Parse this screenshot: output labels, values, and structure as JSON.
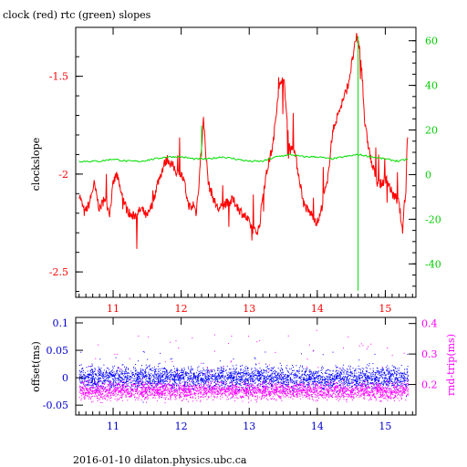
{
  "title": "clock (red) rtc (green) slopes",
  "footer": "2016-01-10  dilaton.physics.ubc.ca",
  "colors": {
    "clock": "#ff0000",
    "rtc": "#00dd00",
    "offset": "#0000ff",
    "rndtrip": "#ff00ff",
    "axis": "#000000"
  },
  "chart_data": [
    {
      "type": "line",
      "ylabel": "clockslope",
      "xlim": [
        10.45,
        15.45
      ],
      "ylim": [
        -2.63,
        -1.25
      ],
      "y2lim": [
        -55,
        66
      ],
      "xticks": [
        11,
        12,
        13,
        14,
        15
      ],
      "yticks": [
        -2.5,
        -2,
        -1.5
      ],
      "ytick_labels": [
        "-2.5",
        "-2",
        "-1.5"
      ],
      "y2ticks": [
        -40,
        -20,
        0,
        20,
        40,
        60
      ],
      "y2tick_labels": [
        "-40",
        "-20",
        "0",
        "20",
        "40",
        "60"
      ],
      "series": [
        {
          "axis": "left",
          "x": [
            10.5,
            10.58,
            10.65,
            10.72,
            10.8,
            10.88,
            10.95,
            11.0,
            11.05,
            11.12,
            11.2,
            11.28,
            11.35,
            11.42,
            11.5,
            11.58,
            11.65,
            11.7,
            11.75,
            11.8,
            11.85,
            11.9,
            11.95,
            12.0,
            12.05,
            12.1,
            12.15,
            12.18,
            12.22,
            12.26,
            12.3,
            12.33,
            12.36,
            12.4,
            12.45,
            12.5,
            12.55,
            12.6,
            12.65,
            12.7,
            12.75,
            12.8,
            12.85,
            12.9,
            12.95,
            13.0,
            13.05,
            13.1,
            13.15,
            13.2,
            13.28,
            13.35,
            13.42,
            13.48,
            13.52,
            13.56,
            13.6,
            13.65,
            13.7,
            13.75,
            13.8,
            13.85,
            13.9,
            13.95,
            14.0,
            14.05,
            14.1,
            14.15,
            14.2,
            14.25,
            14.3,
            14.35,
            14.4,
            14.45,
            14.5,
            14.55,
            14.58,
            14.6,
            14.63,
            14.66,
            14.7,
            14.75,
            14.8,
            14.85,
            14.9,
            14.95,
            15.0,
            15.05,
            15.1,
            15.15,
            15.2,
            15.22,
            15.25,
            15.28,
            15.3,
            15.32,
            15.33
          ],
          "y": [
            -2.1,
            -2.2,
            -2.15,
            -2.05,
            -2.18,
            -2.12,
            -2.2,
            -2.05,
            -2.0,
            -2.1,
            -2.18,
            -2.22,
            -2.2,
            -2.18,
            -2.22,
            -2.15,
            -2.05,
            -2.0,
            -1.95,
            -1.92,
            -1.95,
            -1.97,
            -2.0,
            -2.0,
            -2.05,
            -2.15,
            -2.18,
            -2.15,
            -2.2,
            -2.05,
            -1.85,
            -1.72,
            -1.88,
            -2.05,
            -2.1,
            -2.15,
            -2.18,
            -2.17,
            -2.15,
            -2.15,
            -2.13,
            -2.15,
            -2.18,
            -2.2,
            -2.22,
            -2.25,
            -2.28,
            -2.3,
            -2.27,
            -2.1,
            -1.95,
            -1.85,
            -1.6,
            -1.5,
            -1.55,
            -1.75,
            -1.88,
            -1.85,
            -1.95,
            -2.05,
            -2.15,
            -2.18,
            -2.2,
            -2.22,
            -2.25,
            -2.2,
            -2.1,
            -2.05,
            -1.85,
            -1.75,
            -1.7,
            -1.65,
            -1.6,
            -1.55,
            -1.45,
            -1.35,
            -1.3,
            -1.32,
            -1.38,
            -1.5,
            -1.75,
            -1.85,
            -1.95,
            -2.0,
            -2.05,
            -2.05,
            -2.02,
            -2.05,
            -2.1,
            -2.12,
            -2.15,
            -2.2,
            -2.3,
            -2.15,
            -2.1,
            -1.85,
            -1.8
          ]
        },
        {
          "axis": "right",
          "x": [
            10.5,
            10.8,
            11.0,
            11.2,
            11.4,
            11.6,
            11.8,
            12.0,
            12.2,
            12.4,
            12.6,
            12.8,
            13.0,
            13.2,
            13.4,
            13.6,
            13.8,
            14.0,
            14.2,
            14.4,
            14.6,
            14.8,
            15.0,
            15.2,
            15.33
          ],
          "y": [
            6,
            6,
            7,
            6,
            6,
            7,
            8,
            8,
            7,
            7,
            8,
            7,
            6,
            6,
            8,
            9,
            8,
            8,
            7,
            8,
            9,
            8,
            7,
            6,
            7
          ]
        }
      ]
    },
    {
      "type": "scatter",
      "ylabel": "offset(ms)",
      "y2label": "rnd-trip(ms)",
      "xlim": [
        10.45,
        15.45
      ],
      "ylim": [
        -0.068,
        0.11
      ],
      "y2lim": [
        0.1,
        0.42
      ],
      "xticks": [
        11,
        12,
        13,
        14,
        15
      ],
      "yticks": [
        -0.05,
        0,
        0.05,
        0.1
      ],
      "ytick_labels": [
        "-0.05",
        "0",
        "0.05",
        "0.1"
      ],
      "y2ticks": [
        0.2,
        0.3,
        0.4
      ],
      "y2tick_labels": [
        "0.2",
        "0.3",
        "0.4"
      ],
      "series": [
        {
          "axis": "left",
          "xrange": [
            10.5,
            15.33
          ],
          "center": 0.0,
          "spread": 0.018
        },
        {
          "axis": "right",
          "xrange": [
            10.5,
            15.33
          ],
          "center": 0.18,
          "spread": 0.03
        }
      ]
    }
  ]
}
